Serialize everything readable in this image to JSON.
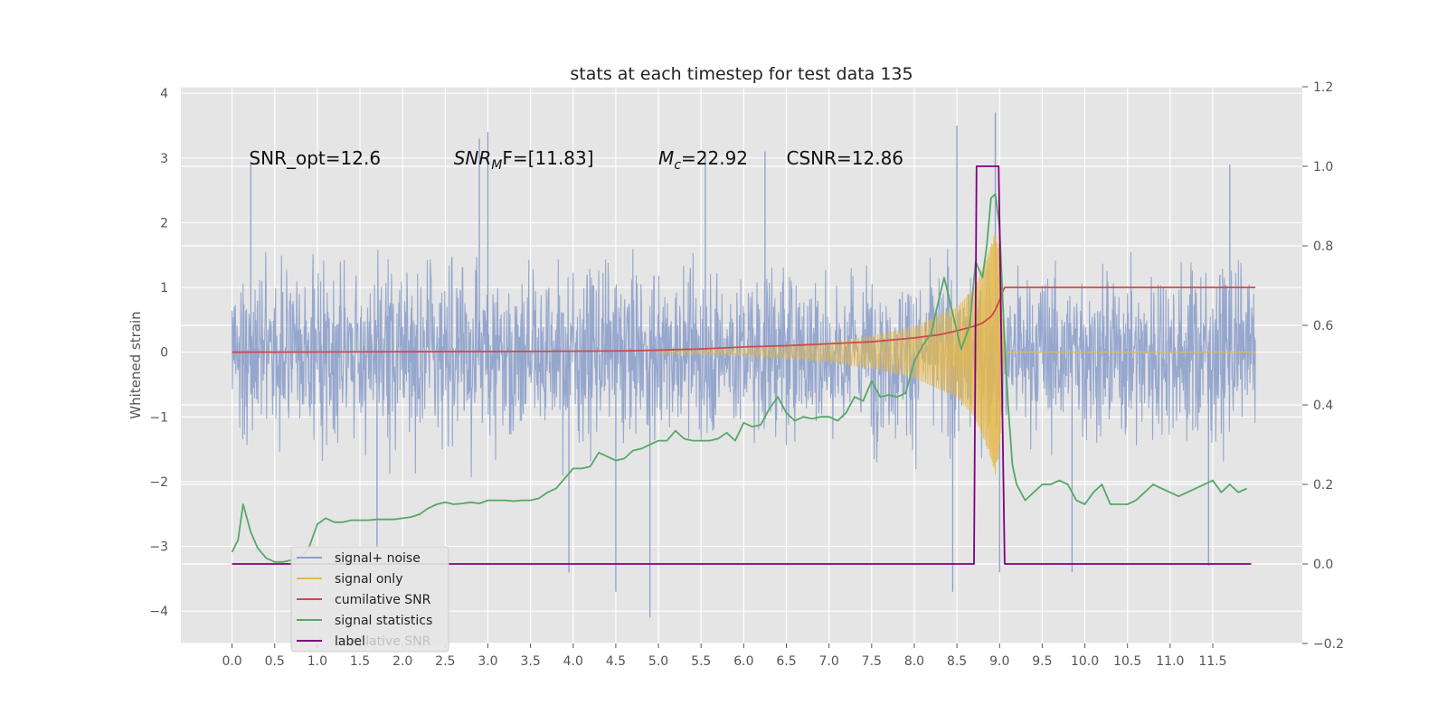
{
  "chart_data": {
    "type": "line",
    "title": "stats at each timestep for test data 135",
    "ylabel": "Whitened strain",
    "y2label": "",
    "xlabel": "",
    "xlim": [
      -0.6,
      12.55
    ],
    "ylim": [
      -4.5,
      4.1
    ],
    "y2lim": [
      -0.2,
      1.2
    ],
    "xticks": [
      0.0,
      0.5,
      1.0,
      1.5,
      2.0,
      2.5,
      3.0,
      3.5,
      4.0,
      4.5,
      5.0,
      5.5,
      6.0,
      6.5,
      7.0,
      7.5,
      8.0,
      8.5,
      9.0,
      9.5,
      10.0,
      10.5,
      11.0,
      11.5
    ],
    "xtick_labels": [
      "0.0",
      "0.5",
      "1.0",
      "1.5",
      "2.0",
      "2.5",
      "3.0",
      "3.5",
      "4.0",
      "4.5",
      "5.0",
      "5.5",
      "6.0",
      "6.5",
      "7.0",
      "7.5",
      "8.0",
      "8.5",
      "9.0",
      "9.5",
      "10.0",
      "10.5",
      "11.0",
      "11.5"
    ],
    "yticks": [
      -4,
      -3,
      -2,
      -1,
      0,
      1,
      2,
      3,
      4
    ],
    "ytick_labels": [
      "−4",
      "−3",
      "−2",
      "−1",
      "0",
      "1",
      "2",
      "3",
      "4"
    ],
    "y2ticks": [
      -0.2,
      0.0,
      0.2,
      0.4,
      0.6,
      0.8,
      1.0,
      1.2
    ],
    "y2tick_labels": [
      "−0.2",
      "0.0",
      "0.2",
      "0.4",
      "0.6",
      "0.8",
      "1.0",
      "1.2"
    ],
    "grid": true,
    "legend_position": "lower-left",
    "annotations": [
      {
        "x": 0.2,
        "y": 2.9,
        "text": "SNR_opt=12.6"
      },
      {
        "x": 2.6,
        "y": 2.9,
        "text": "SNR",
        "sub": "M",
        "suffix": "F=[11.83]",
        "italic": true
      },
      {
        "x": 5.0,
        "y": 2.9,
        "text": "M",
        "sub": "c",
        "suffix": "=22.92",
        "italic": true
      },
      {
        "x": 6.5,
        "y": 2.9,
        "text": "CSNR=12.86"
      }
    ],
    "series": [
      {
        "name": "signal+ noise",
        "axis": "left",
        "color": "#8da0cb",
        "kind": "noise",
        "x_range": [
          0.0,
          12.0
        ],
        "envelope": 1.6,
        "peaks": [
          {
            "x": 0.22,
            "y": 2.9
          },
          {
            "x": 2.9,
            "y": 3.3
          },
          {
            "x": 3.0,
            "y": 3.4
          },
          {
            "x": 5.55,
            "y": 3.1
          },
          {
            "x": 6.25,
            "y": 3.1
          },
          {
            "x": 8.5,
            "y": 3.5
          },
          {
            "x": 8.95,
            "y": 3.7
          },
          {
            "x": 11.7,
            "y": 2.9
          }
        ],
        "troughs": [
          {
            "x": 4.5,
            "y": -3.7
          },
          {
            "x": 4.9,
            "y": -4.1
          },
          {
            "x": 3.95,
            "y": -3.4
          },
          {
            "x": 8.45,
            "y": -3.7
          },
          {
            "x": 9.0,
            "y": -3.4
          },
          {
            "x": 9.85,
            "y": -3.4
          },
          {
            "x": 11.45,
            "y": -3.3
          },
          {
            "x": 1.7,
            "y": -3.0
          }
        ]
      },
      {
        "name": "signal only",
        "axis": "left",
        "color": "#e5b84b",
        "kind": "chirp",
        "x_range": [
          5.0,
          9.05
        ],
        "envelope_points": [
          [
            5.0,
            0.02
          ],
          [
            6.0,
            0.06
          ],
          [
            7.0,
            0.15
          ],
          [
            7.5,
            0.25
          ],
          [
            8.0,
            0.4
          ],
          [
            8.5,
            0.7
          ],
          [
            8.7,
            1.0
          ],
          [
            8.8,
            1.3
          ],
          [
            8.9,
            1.65
          ],
          [
            8.95,
            1.9
          ],
          [
            9.0,
            1.6
          ],
          [
            9.05,
            0.0
          ]
        ],
        "tail_value": 0.0
      },
      {
        "name": "cumilative SNR",
        "axis": "left",
        "color": "#cc4b4b",
        "x": [
          0.0,
          1.0,
          2.0,
          3.0,
          4.0,
          4.7,
          5.5,
          6.0,
          6.5,
          7.0,
          7.5,
          8.0,
          8.3,
          8.5,
          8.7,
          8.8,
          8.9,
          8.95,
          9.0,
          9.03,
          9.06,
          9.1,
          12.0
        ],
        "y": [
          0.0,
          0.003,
          0.006,
          0.01,
          0.015,
          0.02,
          0.05,
          0.08,
          0.1,
          0.13,
          0.16,
          0.22,
          0.27,
          0.33,
          0.4,
          0.45,
          0.55,
          0.65,
          0.8,
          0.92,
          1.0,
          1.0,
          1.0
        ]
      },
      {
        "name": "signal statistics",
        "axis": "right",
        "color": "#55a868",
        "x": [
          0.0,
          0.07,
          0.13,
          0.22,
          0.3,
          0.4,
          0.5,
          0.6,
          0.7,
          0.8,
          0.9,
          1.0,
          1.1,
          1.2,
          1.3,
          1.4,
          1.5,
          1.6,
          1.7,
          1.8,
          1.9,
          2.0,
          2.1,
          2.2,
          2.3,
          2.4,
          2.5,
          2.6,
          2.7,
          2.8,
          2.9,
          3.0,
          3.1,
          3.2,
          3.3,
          3.4,
          3.5,
          3.6,
          3.7,
          3.8,
          3.9,
          4.0,
          4.1,
          4.2,
          4.3,
          4.4,
          4.5,
          4.6,
          4.7,
          4.8,
          4.9,
          5.0,
          5.1,
          5.2,
          5.3,
          5.4,
          5.5,
          5.6,
          5.7,
          5.8,
          5.9,
          6.0,
          6.1,
          6.2,
          6.3,
          6.4,
          6.5,
          6.6,
          6.7,
          6.8,
          6.9,
          7.0,
          7.1,
          7.2,
          7.3,
          7.4,
          7.5,
          7.6,
          7.7,
          7.8,
          7.9,
          8.0,
          8.1,
          8.2,
          8.25,
          8.35,
          8.45,
          8.55,
          8.65,
          8.72,
          8.8,
          8.85,
          8.9,
          8.95,
          9.0,
          9.05,
          9.1,
          9.15,
          9.2,
          9.3,
          9.4,
          9.5,
          9.6,
          9.7,
          9.8,
          9.9,
          10.0,
          10.1,
          10.2,
          10.3,
          10.4,
          10.5,
          10.6,
          10.7,
          10.8,
          10.9,
          11.0,
          11.1,
          11.2,
          11.3,
          11.4,
          11.5,
          11.6,
          11.7,
          11.8,
          11.9
        ],
        "y": [
          0.03,
          0.06,
          0.15,
          0.08,
          0.04,
          0.015,
          0.005,
          0.005,
          0.01,
          0.015,
          0.04,
          0.1,
          0.115,
          0.105,
          0.105,
          0.11,
          0.11,
          0.11,
          0.112,
          0.112,
          0.112,
          0.115,
          0.118,
          0.125,
          0.14,
          0.15,
          0.155,
          0.15,
          0.152,
          0.155,
          0.152,
          0.16,
          0.16,
          0.16,
          0.158,
          0.16,
          0.16,
          0.165,
          0.18,
          0.19,
          0.215,
          0.24,
          0.24,
          0.245,
          0.28,
          0.27,
          0.26,
          0.265,
          0.285,
          0.29,
          0.3,
          0.31,
          0.31,
          0.335,
          0.315,
          0.31,
          0.31,
          0.31,
          0.315,
          0.33,
          0.31,
          0.355,
          0.345,
          0.35,
          0.39,
          0.42,
          0.38,
          0.36,
          0.37,
          0.365,
          0.37,
          0.37,
          0.36,
          0.38,
          0.42,
          0.41,
          0.46,
          0.42,
          0.425,
          0.42,
          0.43,
          0.51,
          0.55,
          0.58,
          0.63,
          0.72,
          0.63,
          0.54,
          0.6,
          0.76,
          0.72,
          0.8,
          0.92,
          0.93,
          0.85,
          0.6,
          0.4,
          0.25,
          0.2,
          0.16,
          0.18,
          0.2,
          0.2,
          0.21,
          0.2,
          0.16,
          0.15,
          0.18,
          0.2,
          0.15,
          0.15,
          0.15,
          0.16,
          0.18,
          0.2,
          0.19,
          0.18,
          0.17,
          0.18,
          0.19,
          0.2,
          0.21,
          0.18,
          0.2,
          0.18,
          0.19
        ]
      },
      {
        "name": "label",
        "axis": "right",
        "color": "#800080",
        "x": [
          0.0,
          8.7,
          8.7,
          8.73,
          8.73,
          8.99,
          8.99,
          9.06,
          9.06,
          11.95
        ],
        "y": [
          0.0,
          0.0,
          0.0,
          1.0,
          1.0,
          1.0,
          1.0,
          0.0,
          0.0,
          0.0
        ]
      }
    ],
    "legend": [
      {
        "label": "signal+ noise",
        "color": "#8da0cb"
      },
      {
        "label": "signal only",
        "color": "#e5b84b"
      },
      {
        "label": "cumilative SNR",
        "color": "#cc4b4b"
      },
      {
        "label": "signal statistics",
        "color": "#55a868"
      },
      {
        "label": "label",
        "color": "#800080"
      }
    ],
    "legend_ghost": "cumilative SNR"
  }
}
